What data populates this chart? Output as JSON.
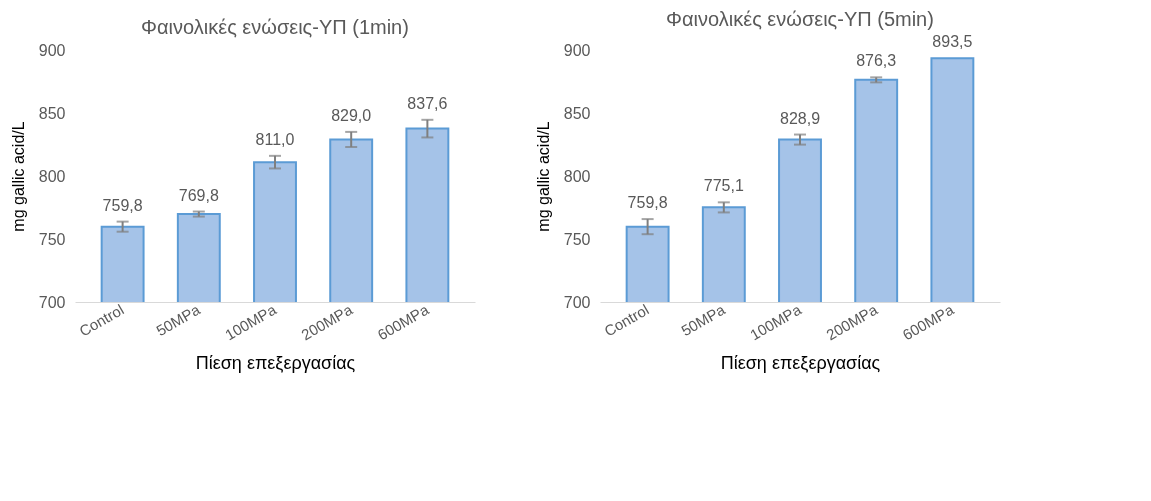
{
  "chart_data": [
    {
      "type": "bar",
      "title": "Φαινολικές ενώσεις-ΥΠ (1min)",
      "xlabel": "Πίεση επεξεργασίας",
      "ylabel": "mg gallic acid/L",
      "categories": [
        "Control",
        "50MPa",
        "100MPa",
        "200MPa",
        "600MPa"
      ],
      "values": [
        759.8,
        769.8,
        811.0,
        829.0,
        837.6
      ],
      "value_labels": [
        "759,8",
        "769,8",
        "811,0",
        "829,0",
        "837,6"
      ],
      "errors": [
        4,
        2,
        5,
        6,
        7
      ],
      "color": "#a5c3e8",
      "ylim": [
        700,
        900
      ],
      "yticks": [
        700,
        750,
        800,
        850,
        900
      ],
      "grid": false
    },
    {
      "type": "bar",
      "title": "Φαινολικές ενώσεις-ΥΠ (5min)",
      "xlabel": "Πίεση επεξεργασίας",
      "ylabel": "mg gallic acid/L",
      "categories": [
        "Control",
        "50MPa",
        "100MPa",
        "200MPa",
        "600MPa"
      ],
      "values": [
        759.8,
        775.1,
        828.9,
        876.3,
        893.5
      ],
      "value_labels": [
        "759,8",
        "775,1",
        "828,9",
        "876,3",
        "893,5"
      ],
      "errors": [
        6,
        4,
        4,
        2,
        null
      ],
      "color": "#a5c3e8",
      "ylim": [
        700,
        900
      ],
      "yticks": [
        700,
        750,
        800,
        850,
        900
      ],
      "grid": false
    }
  ]
}
